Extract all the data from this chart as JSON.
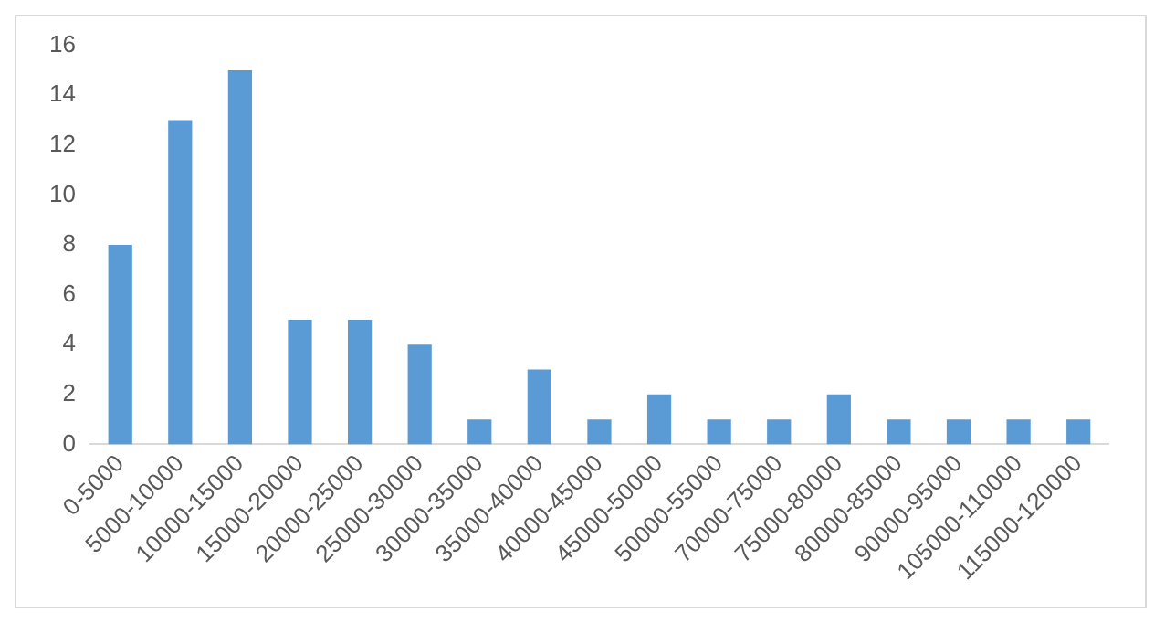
{
  "chart_data": {
    "type": "bar",
    "categories": [
      "0-5000",
      "5000-10000",
      "10000-15000",
      "15000-20000",
      "20000-25000",
      "25000-30000",
      "30000-35000",
      "35000-40000",
      "40000-45000",
      "45000-50000",
      "50000-55000",
      "70000-75000",
      "75000-80000",
      "80000-85000",
      "90000-95000",
      "105000-110000",
      "115000-120000"
    ],
    "values": [
      8,
      13,
      15,
      5,
      5,
      4,
      1,
      3,
      1,
      2,
      1,
      1,
      2,
      1,
      1,
      1,
      1
    ],
    "color": "#5b9bd5",
    "ylim": [
      0,
      16
    ],
    "yticks": [
      0,
      2,
      4,
      6,
      8,
      10,
      12,
      14,
      16
    ],
    "grid": false,
    "legend": false
  }
}
